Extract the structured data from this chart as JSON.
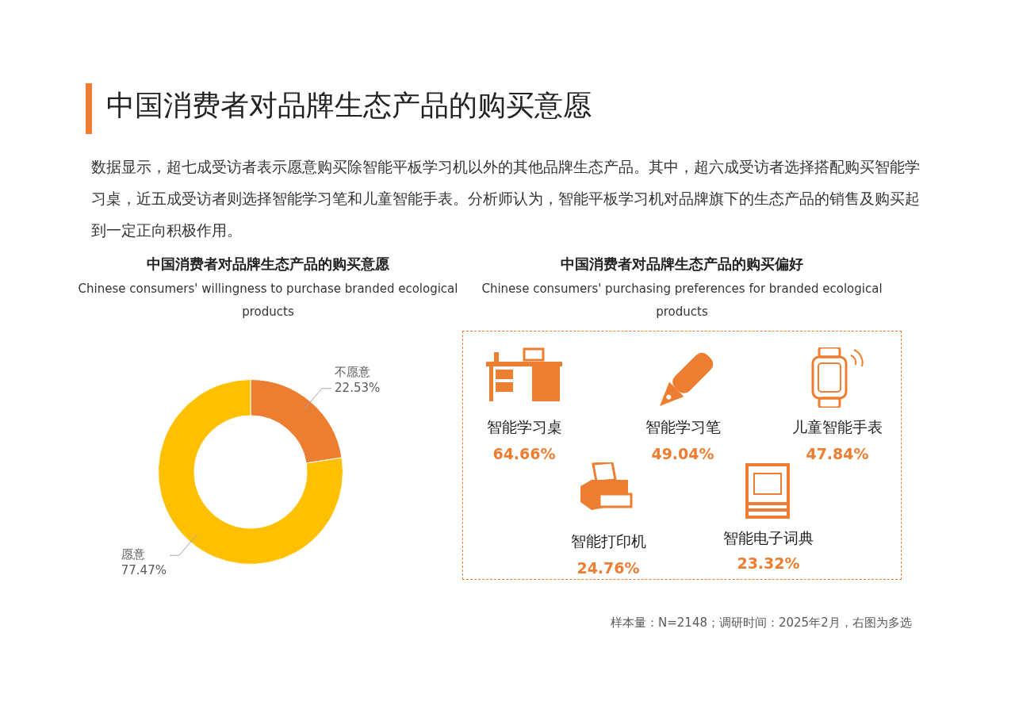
{
  "chart_data": [
    {
      "type": "other",
      "title": "中国消费者对品牌生态产品的购买意愿",
      "annotations": [
        "数据显示，超七成受访者表示愿意购买除智能平板学习机以外的其他品牌生态产品。其中，超六成受访者选择搭配购买智能学习桌，近五成受访者则选择智能学习笔和儿童智能手表。分析师认为，智能平板学习机对品牌旗下的生态产品的销售及购买起到一定正向积极作用。"
      ]
    },
    {
      "type": "donut",
      "title": "中国消费者对品牌生态产品的购买意愿",
      "subtitle": "Chinese consumers' willingness to purchase branded ecological products",
      "categories": [
        "不愿意",
        "愿意"
      ],
      "values": [
        22.53,
        77.47
      ],
      "colors": [
        "#ed7d31",
        "#ffc000"
      ],
      "value_labels": [
        "22.53%",
        "77.47%"
      ],
      "legend": false
    },
    {
      "type": "other",
      "title": "中国消费者对品牌生态产品的购买偏好",
      "subtitle": "Chinese consumers' purchasing preferences for branded ecological products",
      "categories": [
        "智能学习桌",
        "智能学习笔",
        "儿童智能手表",
        "智能打印机",
        "智能电子词典"
      ],
      "values": [
        64.66,
        49.04,
        47.84,
        24.76,
        23.32
      ],
      "value_labels": [
        "64.66%",
        "49.04%",
        "47.84%",
        "24.76%",
        "23.32%"
      ],
      "annotations": [
        "样本量：N=2148；调研时间：2025年2月，右图为多选"
      ]
    }
  ]
}
